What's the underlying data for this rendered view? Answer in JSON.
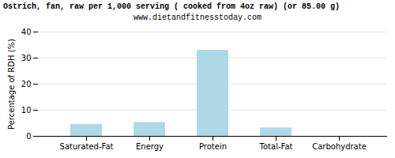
{
  "chart_data": {
    "type": "bar",
    "title": "Ostrich, fan, raw per 1,000 serving ( cooked from 4oz raw) (or 85.00 g)",
    "subtitle": "www.dietandfitnesstoday.com",
    "categories": [
      "Saturated-Fat",
      "Energy",
      "Protein",
      "Total-Fat",
      "Carbohydrate"
    ],
    "values": [
      4.5,
      5.3,
      33.0,
      3.2,
      0.0
    ],
    "color": "#add8e6",
    "ylabel": "Percentage of RDH (%)",
    "ylim": [
      0,
      40
    ],
    "yticks": [
      0,
      10,
      20,
      30,
      40
    ],
    "grid": true
  }
}
